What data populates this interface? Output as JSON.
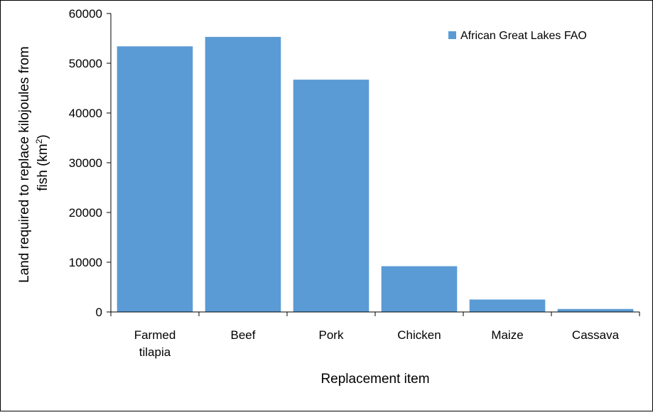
{
  "chart_data": {
    "type": "bar",
    "title": "",
    "xlabel": "Replacement item",
    "ylabel": {
      "line1": "Land required to replace kilojoules from",
      "line2_prefix": "fish (km",
      "line2_superscript": "2",
      "line2_suffix": ")"
    },
    "categories": [
      [
        "Farmed",
        "tilapia"
      ],
      [
        "Beef"
      ],
      [
        "Pork"
      ],
      [
        "Chicken"
      ],
      [
        "Maize"
      ],
      [
        "Cassava"
      ]
    ],
    "series": [
      {
        "name": "African Great Lakes FAO",
        "color": "#5B9BD5",
        "values": [
          53400,
          55300,
          46700,
          9200,
          2500,
          600
        ]
      }
    ],
    "ylim": [
      0,
      60000
    ],
    "yticks": [
      "0",
      "10000",
      "20000",
      "30000",
      "40000",
      "50000",
      "60000"
    ],
    "grid": false,
    "legend_position": "top-right"
  }
}
